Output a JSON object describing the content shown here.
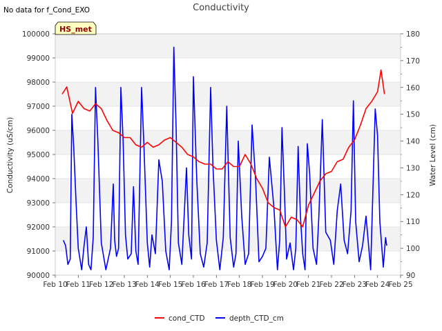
{
  "chart_data": {
    "type": "line",
    "title": "Conductivity",
    "note": "No data for f_Cond_EXO",
    "badge": "HS_met",
    "xlabel": "",
    "ylabel": "Conductivity (uS/cm)",
    "y2label": "Water Level (cm)",
    "x_ticks": [
      "Feb 10",
      "Feb 11",
      "Feb 12",
      "Feb 13",
      "Feb 14",
      "Feb 15",
      "Feb 16",
      "Feb 17",
      "Feb 18",
      "Feb 19",
      "Feb 20",
      "Feb 21",
      "Feb 22",
      "Feb 23",
      "Feb 24",
      "Feb 25"
    ],
    "xlim": [
      10,
      25
    ],
    "ylim": [
      90000,
      100000
    ],
    "y_ticks": [
      90000,
      91000,
      92000,
      93000,
      94000,
      95000,
      96000,
      97000,
      98000,
      99000,
      100000
    ],
    "y2lim": [
      90,
      180
    ],
    "y2_ticks": [
      90,
      100,
      110,
      120,
      130,
      140,
      150,
      160,
      170,
      180
    ],
    "grid": true,
    "legend_position": "bottom-center",
    "series": [
      {
        "name": "cond_CTD",
        "axis": "left",
        "color": "#ff0000",
        "x": [
          10.3,
          10.5,
          10.75,
          11.0,
          11.25,
          11.5,
          11.75,
          12.0,
          12.25,
          12.5,
          12.75,
          13.0,
          13.25,
          13.5,
          13.75,
          14.0,
          14.25,
          14.5,
          14.75,
          15.0,
          15.25,
          15.5,
          15.75,
          16.0,
          16.25,
          16.5,
          16.75,
          17.0,
          17.25,
          17.5,
          17.75,
          18.0,
          18.25,
          18.5,
          18.75,
          19.0,
          19.25,
          19.5,
          19.75,
          20.0,
          20.25,
          20.5,
          20.75,
          21.0,
          21.25,
          21.5,
          21.75,
          22.0,
          22.25,
          22.5,
          22.75,
          23.0,
          23.25,
          23.5,
          23.75,
          24.0,
          24.15,
          24.3
        ],
        "values": [
          97500,
          97800,
          96700,
          97200,
          96900,
          96800,
          97100,
          96900,
          96400,
          96000,
          95900,
          95700,
          95700,
          95400,
          95300,
          95500,
          95300,
          95400,
          95600,
          95700,
          95500,
          95300,
          95000,
          94900,
          94700,
          94600,
          94600,
          94400,
          94400,
          94700,
          94500,
          94500,
          95000,
          94600,
          94000,
          93600,
          93000,
          92800,
          92700,
          92000,
          92400,
          92300,
          92000,
          92900,
          93400,
          93900,
          94200,
          94300,
          94700,
          94800,
          95300,
          95600,
          96200,
          96900,
          97200,
          97600,
          98500,
          97500
        ]
      },
      {
        "name": "depth_CTD_cm",
        "axis": "right",
        "color": "#0000ff",
        "x": [
          10.35,
          10.45,
          10.55,
          10.65,
          10.72,
          10.8,
          10.9,
          11.0,
          11.15,
          11.25,
          11.35,
          11.45,
          11.55,
          11.65,
          11.75,
          11.85,
          12.0,
          12.2,
          12.4,
          12.52,
          12.58,
          12.66,
          12.75,
          12.85,
          12.95,
          13.05,
          13.15,
          13.3,
          13.4,
          13.5,
          13.6,
          13.75,
          13.85,
          14.0,
          14.1,
          14.2,
          14.35,
          14.5,
          14.65,
          14.8,
          14.95,
          15.05,
          15.15,
          15.25,
          15.35,
          15.5,
          15.7,
          15.8,
          15.92,
          16.0,
          16.15,
          16.3,
          16.45,
          16.6,
          16.75,
          16.85,
          17.0,
          17.15,
          17.3,
          17.45,
          17.6,
          17.75,
          17.85,
          17.95,
          18.1,
          18.25,
          18.4,
          18.55,
          18.7,
          18.85,
          19.0,
          19.15,
          19.3,
          19.5,
          19.65,
          19.75,
          19.85,
          19.95,
          20.05,
          20.2,
          20.35,
          20.45,
          20.55,
          20.65,
          20.75,
          20.85,
          20.95,
          21.05,
          21.2,
          21.35,
          21.45,
          21.6,
          21.75,
          21.95,
          22.1,
          22.25,
          22.4,
          22.55,
          22.7,
          22.85,
          22.95,
          23.05,
          23.2,
          23.35,
          23.5,
          23.7,
          23.9,
          24.0,
          24.1,
          24.25,
          24.35,
          24.4
        ],
        "values": [
          103,
          101,
          94,
          96,
          150,
          138,
          118,
          100,
          92,
          101,
          108,
          94,
          92,
          104,
          160,
          140,
          102,
          92,
          100,
          124,
          103,
          97,
          100,
          160,
          140,
          105,
          96,
          98,
          123,
          99,
          94,
          160,
          139,
          102,
          93,
          105,
          98,
          133,
          125,
          99,
          92,
          110,
          175,
          145,
          102,
          94,
          130,
          105,
          96,
          164,
          125,
          98,
          93,
          102,
          160,
          131,
          103,
          92,
          104,
          153,
          104,
          93,
          98,
          140,
          112,
          94,
          98,
          146,
          126,
          95,
          97,
          100,
          134,
          115,
          92,
          103,
          145,
          122,
          96,
          102,
          92,
          100,
          138,
          112,
          98,
          92,
          139,
          128,
          100,
          94,
          112,
          148,
          106,
          103,
          94,
          114,
          124,
          103,
          98,
          114,
          155,
          110,
          95,
          101,
          112,
          92,
          152,
          142,
          110,
          93,
          104,
          101
        ]
      }
    ]
  }
}
